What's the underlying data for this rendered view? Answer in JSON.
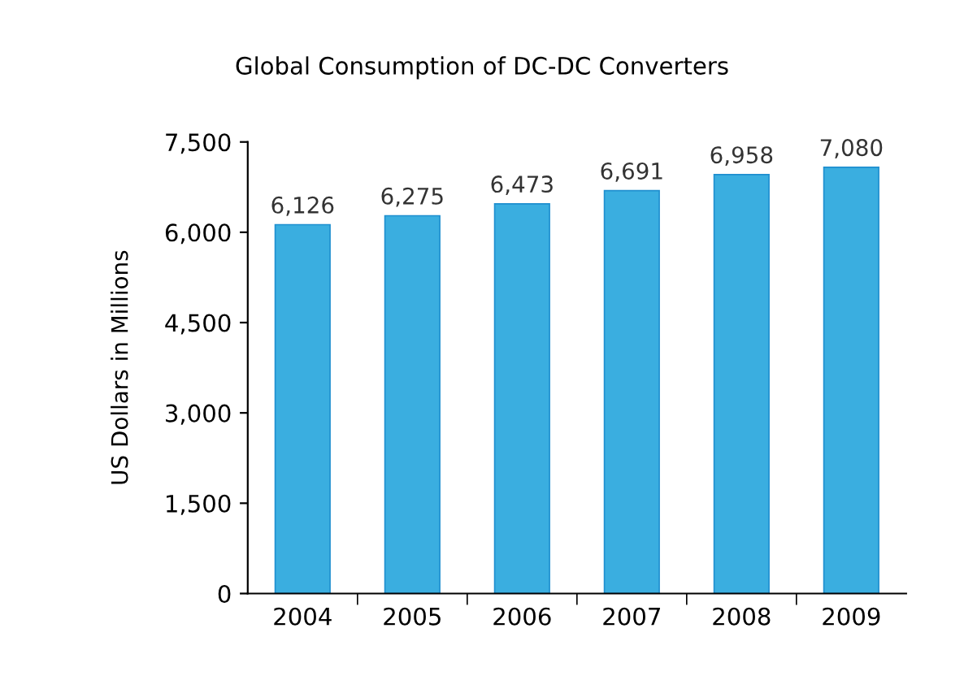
{
  "chart_data": {
    "type": "bar",
    "title": "Global Consumption of DC-DC Converters",
    "ylabel": "US Dollars in Millions",
    "categories": [
      "2004",
      "2005",
      "2006",
      "2007",
      "2008",
      "2009"
    ],
    "values": [
      6126,
      6275,
      6473,
      6691,
      6958,
      7080
    ],
    "color": "#3aaee0",
    "value_labels": [
      "6,126",
      "6,275",
      "6,473",
      "6,691",
      "6,958",
      "7,080"
    ],
    "ylim": [
      0,
      7500
    ],
    "yticks": [
      {
        "value": 0,
        "label": "0"
      },
      {
        "value": 1500,
        "label": "1,500"
      },
      {
        "value": 3000,
        "label": "3,000"
      },
      {
        "value": 4500,
        "label": "4,500"
      },
      {
        "value": 6000,
        "label": "6,000"
      },
      {
        "value": 7500,
        "label": "7,500"
      }
    ],
    "grid": false,
    "legend": false
  }
}
